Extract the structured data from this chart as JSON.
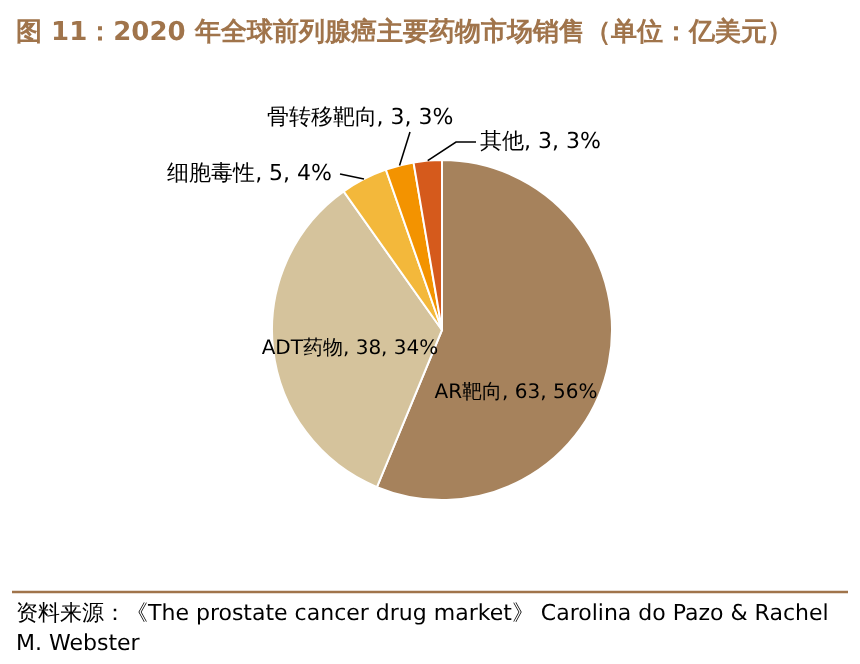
{
  "chart_data": {
    "type": "pie",
    "title": "图 11：2020 年全球前列腺癌主要药物市场销售（单位：亿美元）",
    "categories": [
      "AR靶向",
      "ADT药物",
      "细胞毒性",
      "骨转移靶向",
      "其他"
    ],
    "values": [
      63,
      38,
      5,
      3,
      3
    ],
    "colors": [
      "#a6825c",
      "#d5c39c",
      "#f3b83b",
      "#f39300",
      "#d55a1c"
    ],
    "value_labels": [
      "63, 56%",
      "38, 34%",
      "5, 4%",
      "3, 3%",
      "3, 3%"
    ],
    "annotations": [
      "资料来源：《The prostate cancer drug market》 Carolina do Pazo & Rachel M. Webster"
    ]
  }
}
